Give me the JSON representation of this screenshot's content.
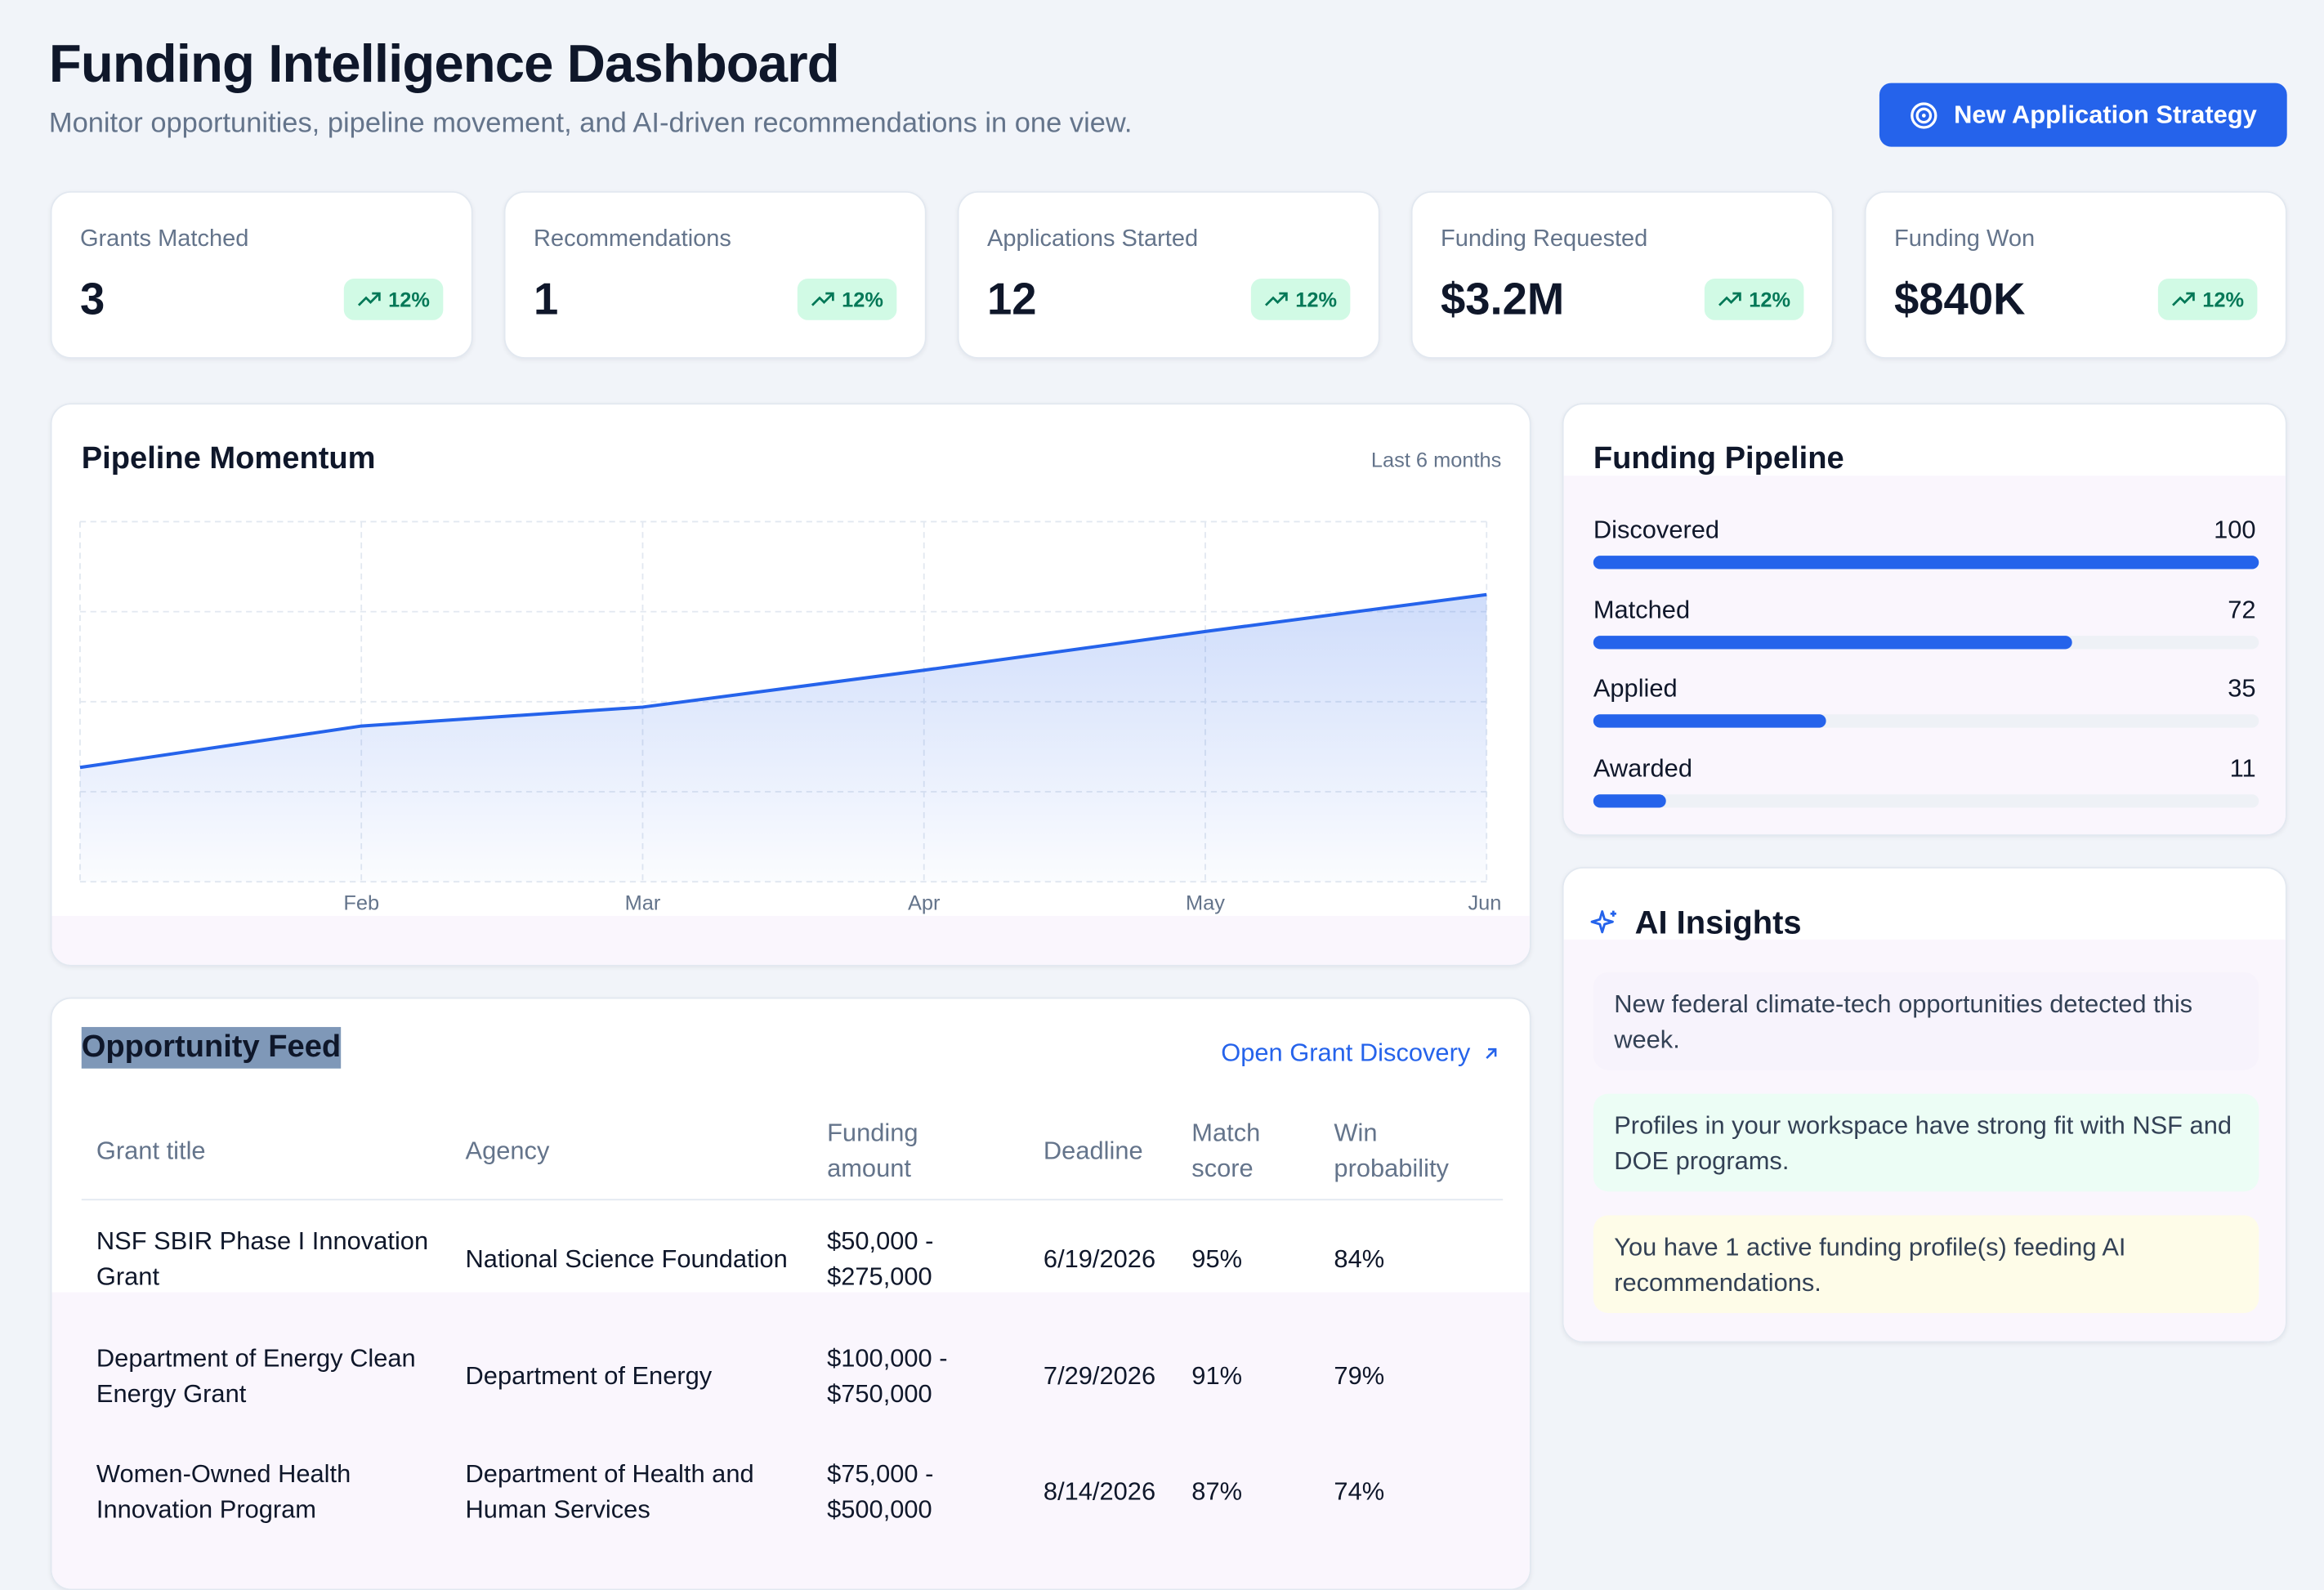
{
  "header": {
    "title": "Funding Intelligence Dashboard",
    "subtitle": "Monitor opportunities, pipeline movement, and AI-driven recommendations in one view.",
    "action": "New Application Strategy"
  },
  "stats": [
    {
      "label": "Grants Matched",
      "value": "3",
      "change": "12%"
    },
    {
      "label": "Recommendations",
      "value": "1",
      "change": "12%"
    },
    {
      "label": "Applications Started",
      "value": "12",
      "change": "12%"
    },
    {
      "label": "Funding Requested",
      "value": "$3.2M",
      "change": "12%"
    },
    {
      "label": "Funding Won",
      "value": "$840K",
      "change": "12%"
    }
  ],
  "chart_data": {
    "type": "line",
    "title": "Pipeline Momentum",
    "subtitle": "Last 6 months",
    "categories": [
      null,
      "Feb",
      "Mar",
      "Apr",
      "May",
      "Jun"
    ],
    "values": [
      1.27,
      1.73,
      1.94,
      2.35,
      2.78,
      3.19
    ],
    "color": "#2563eb",
    "ylim": [
      0,
      4
    ],
    "yticks": [
      0,
      1,
      2,
      3,
      4
    ],
    "grid": true
  },
  "pipeline": {
    "title": "Funding Pipeline",
    "stages": [
      {
        "label": "Discovered",
        "value": 100
      },
      {
        "label": "Matched",
        "value": 72
      },
      {
        "label": "Applied",
        "value": 35
      },
      {
        "label": "Awarded",
        "value": 11
      }
    ]
  },
  "insights": {
    "title": "AI Insights",
    "items": [
      "New federal climate-tech opportunities detected this week.",
      "Profiles in your workspace have strong fit with NSF and DOE programs.",
      "You have 1 active funding profile(s) feeding AI recommendations."
    ]
  },
  "feed": {
    "title": "Opportunity Feed",
    "link": "Open Grant Discovery",
    "columns": [
      "Grant title",
      "Agency",
      "Funding amount",
      "Deadline",
      "Match score",
      "Win probability"
    ],
    "rows": [
      [
        "NSF SBIR Phase I Innovation Grant",
        "National Science Foundation",
        "$50,000 - $275,000",
        "6/19/2026",
        "95%",
        "84%"
      ],
      [
        "Department of Energy Clean Energy Grant",
        "Department of Energy",
        "$100,000 - $750,000",
        "7/29/2026",
        "91%",
        "79%"
      ],
      [
        "Women-Owned Health Innovation Program",
        "Department of Health and Human Services",
        "$75,000 - $500,000",
        "8/14/2026",
        "87%",
        "74%"
      ]
    ]
  }
}
